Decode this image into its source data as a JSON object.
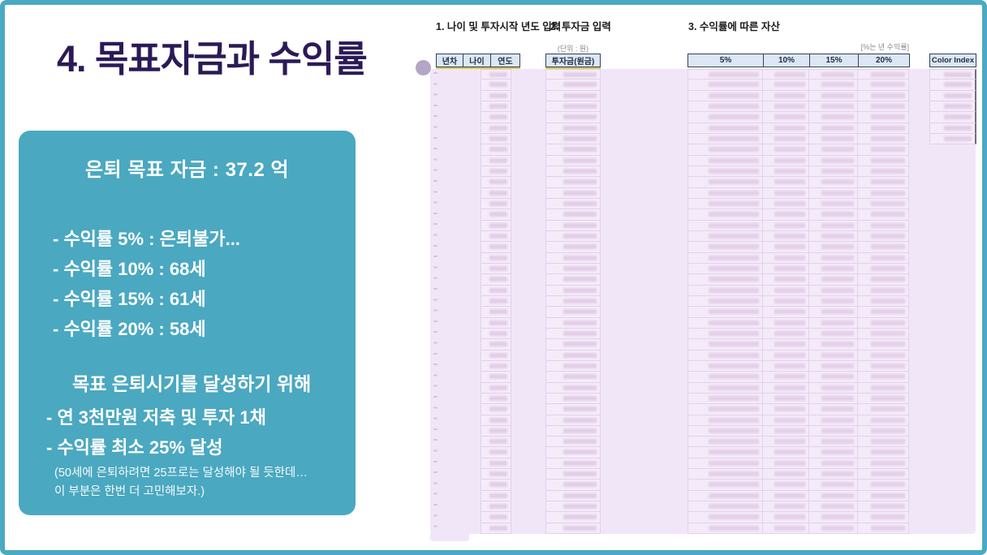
{
  "slide": {
    "title": "4. 목표자금과 수익률",
    "colors": {
      "border_teal": "#4BA9C4",
      "box_teal": "#4AA8C0",
      "title_navy": "#2B1A56",
      "overlay_lavender": "#F1E6F8",
      "header_cell_blue": "#DCE7F3",
      "underline_yellow": "#D9CA4D",
      "title_dot_lavender": "#B3A6C6"
    }
  },
  "summary_box": {
    "headline": "은퇴 목표 자금 : 37.2 억",
    "rate_lines": [
      "- 수익률 5% : 은퇴불가...",
      "- 수익률 10% : 68세",
      "- 수익률 15% : 61세",
      "- 수익률 20% : 58세"
    ],
    "goal_heading": "목표 은퇴시기를 달성하기 위해",
    "goal_lines": [
      "- 연 3천만원 저축 및 투자 1채",
      "- 수익률 최소 25% 달성"
    ],
    "note_lines": [
      "(50세에 은퇴하려면 25프로는 달성해야 될 듯한데…",
      "이 부분은 한번 더 고민해보자.)"
    ]
  },
  "sheet": {
    "section1_title": "1. 나이 및 투자시작 년도 입력",
    "section2_title": "2. 투자금 입력",
    "section3_title": "3. 수익률에 따른 자산",
    "unit_note": "(단위 : 원)",
    "rate_note": "[%는 년 수익률]",
    "age_headers": [
      "년차",
      "나이",
      "연도"
    ],
    "invest_header": "투자금(원금)",
    "rate_headers": [
      "5%",
      "10%",
      "15%",
      "20%"
    ],
    "color_index_header": "Color Index",
    "body_rows": 43,
    "color_index_rows": 7,
    "rate_columns": 4
  }
}
